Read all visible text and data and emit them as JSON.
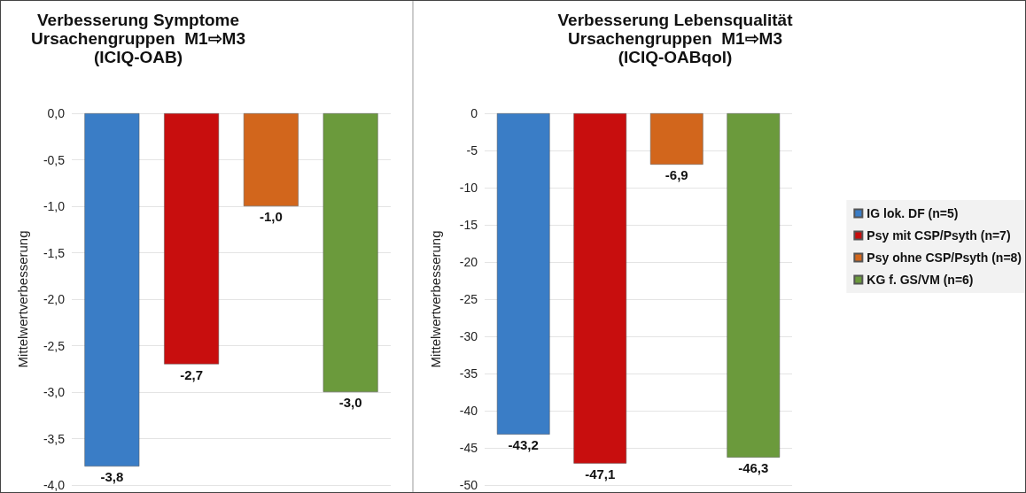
{
  "chart_data": [
    {
      "type": "bar",
      "title": "Verbesserung Symptome\nUrsachengruppen  M1⇨M3\n(ICIQ-OAB)",
      "ylabel": "Mittelwertverbesserung",
      "categories": [
        null
      ],
      "series": [
        {
          "color": "#3a7dc6",
          "values": [
            -3.8
          ],
          "value_labels": [
            "-3,8"
          ]
        },
        {
          "color": "#c80e0e",
          "values": [
            -2.7
          ],
          "value_labels": [
            "-2,7"
          ]
        },
        {
          "color": "#d2661c",
          "values": [
            -1.0
          ],
          "value_labels": [
            "-1,0"
          ]
        },
        {
          "color": "#6b9a3c",
          "values": [
            -3.0
          ],
          "value_labels": [
            "-3,0"
          ]
        }
      ],
      "ylim": [
        -4,
        0
      ],
      "yticks": [
        {
          "value": 0,
          "label": "0,0"
        },
        {
          "value": -0.5,
          "label": "-0,5"
        },
        {
          "value": -1,
          "label": "-1,0"
        },
        {
          "value": -1.5,
          "label": "-1,5"
        },
        {
          "value": -2,
          "label": "-2,0"
        },
        {
          "value": -2.5,
          "label": "-2,5"
        },
        {
          "value": -3,
          "label": "-3,0"
        },
        {
          "value": -3.5,
          "label": "-3,5"
        },
        {
          "value": -4,
          "label": "-4,0"
        }
      ],
      "grid": "y",
      "legend": false
    },
    {
      "type": "bar",
      "title": "Verbesserung Lebensqualität\nUrsachengruppen  M1⇨M3\n(ICIQ-OABqol)",
      "ylabel": "Mittelwertverbesserung",
      "categories": [
        null
      ],
      "series": [
        {
          "name": "IG lok. DF (n=5)",
          "color": "#3a7dc6",
          "values": [
            -43.2
          ],
          "value_labels": [
            "-43,2"
          ]
        },
        {
          "name": "Psy mit CSP/Psyth (n=7)",
          "color": "#c80e0e",
          "values": [
            -47.1
          ],
          "value_labels": [
            "-47,1"
          ]
        },
        {
          "name": "Psy ohne CSP/Psyth (n=8)",
          "color": "#d2661c",
          "values": [
            -6.9
          ],
          "value_labels": [
            "-6,9"
          ]
        },
        {
          "name": "KG f. GS/VM (n=6)",
          "color": "#6b9a3c",
          "values": [
            -46.3
          ],
          "value_labels": [
            "-46,3"
          ]
        }
      ],
      "ylim": [
        -50,
        0
      ],
      "yticks": [
        0,
        -5,
        -10,
        -15,
        -20,
        -25,
        -30,
        -35,
        -40,
        -45,
        -50
      ],
      "grid": "y",
      "legend": "right"
    }
  ]
}
